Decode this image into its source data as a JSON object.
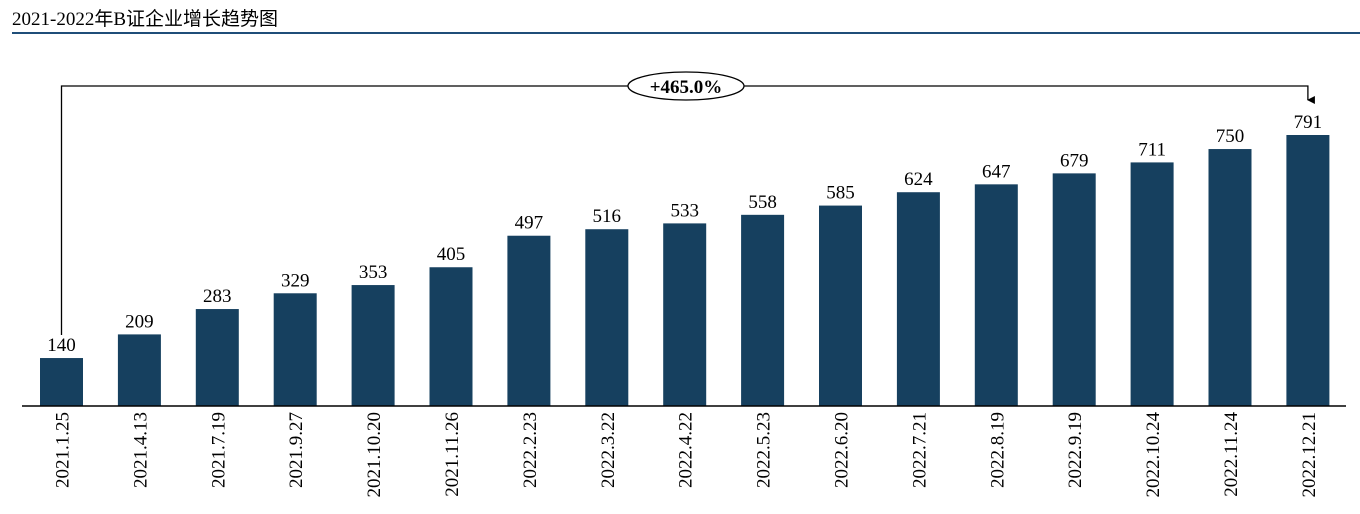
{
  "chart_data": {
    "type": "bar",
    "title": "2021-2022年B证企业增长趋势图",
    "xlabel": "",
    "ylabel": "",
    "ylim": [
      0,
      900
    ],
    "grid": false,
    "categories": [
      "2021.1.25",
      "2021.4.13",
      "2021.7.19",
      "2021.9.27",
      "2021.10.20",
      "2021.11.26",
      "2022.2.23",
      "2022.3.22",
      "2022.4.22",
      "2022.5.23",
      "2022.6.20",
      "2022.7.21",
      "2022.8.19",
      "2022.9.19",
      "2022.10.24",
      "2022.11.24",
      "2022.12.21"
    ],
    "values": [
      140,
      209,
      283,
      329,
      353,
      405,
      497,
      516,
      533,
      558,
      585,
      624,
      647,
      679,
      711,
      750,
      791
    ],
    "annotation": "+465.0%",
    "bar_color": "#16405f",
    "title_rule_color": "#1f4e79"
  }
}
